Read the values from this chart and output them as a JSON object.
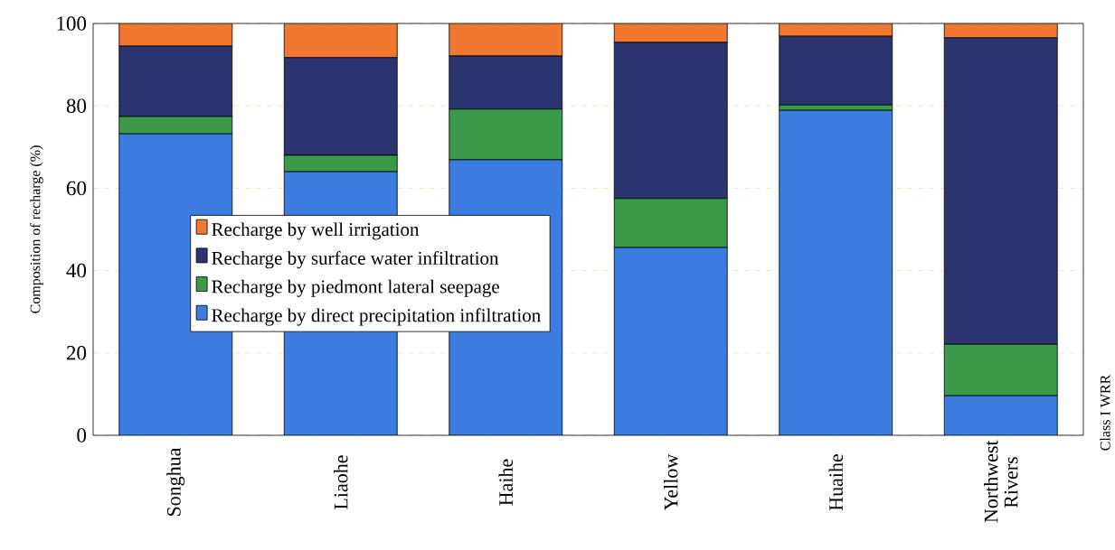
{
  "chart_data": {
    "type": "bar",
    "stacked": true,
    "ylabel": "Composition of recharge (%)",
    "annotations": [
      "Class I WRR"
    ],
    "categories": [
      "Songhua",
      "Liaohe",
      "Haihe",
      "Yellow",
      "Huaihe",
      "Northwest Rivers"
    ],
    "series": [
      {
        "name": "Recharge by direct precipitation infiltration",
        "color": "#3a7ce0",
        "values": [
          73.2,
          64.0,
          66.9,
          45.6,
          78.9,
          9.6
        ]
      },
      {
        "name": "Recharge by piedmont lateral seepage",
        "color": "#3a9a4a",
        "values": [
          4.2,
          4.0,
          12.3,
          11.9,
          1.3,
          12.5
        ]
      },
      {
        "name": "Recharge by surface water infiltration",
        "color": "#2a3570",
        "values": [
          17.1,
          23.7,
          12.9,
          37.9,
          16.7,
          74.4
        ]
      },
      {
        "name": "Recharge by well irrigation",
        "color": "#f07830",
        "values": [
          5.5,
          8.3,
          7.9,
          4.6,
          3.1,
          3.5
        ]
      }
    ],
    "ylim": [
      0,
      100
    ],
    "yticks": [
      0,
      20,
      40,
      60,
      80,
      100
    ],
    "grid": "y",
    "legend": "left"
  }
}
